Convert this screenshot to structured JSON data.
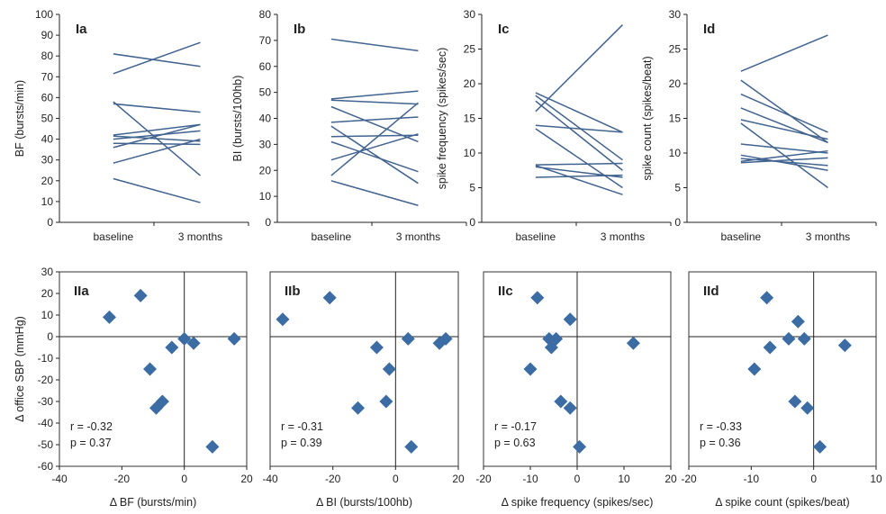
{
  "colors": {
    "series": "#41638f",
    "marker": "#3b6ca3",
    "axis": "#222222",
    "panel_border": "#333333"
  },
  "chart_data": [
    {
      "type": "line",
      "panel_label": "Ia",
      "xlabel": "",
      "ylabel": "BF (bursts/min)",
      "categories": [
        "baseline",
        "3 months"
      ],
      "ylim": [
        0,
        100
      ],
      "yticks": [
        0,
        10,
        20,
        30,
        40,
        50,
        60,
        70,
        80,
        90,
        100
      ],
      "pairs": [
        [
          81,
          75
        ],
        [
          71.5,
          86.5
        ],
        [
          58,
          22.5
        ],
        [
          57,
          53
        ],
        [
          42,
          47
        ],
        [
          40,
          44
        ],
        [
          41.5,
          39
        ],
        [
          38,
          37.5
        ],
        [
          36,
          47
        ],
        [
          28.5,
          40
        ],
        [
          21,
          9.5
        ]
      ]
    },
    {
      "type": "line",
      "panel_label": "Ib",
      "xlabel": "",
      "ylabel": "BI (bursts/100hb)",
      "categories": [
        "baseline",
        "3 months"
      ],
      "ylim": [
        0,
        80
      ],
      "yticks": [
        0,
        10,
        20,
        30,
        40,
        50,
        60,
        70,
        80
      ],
      "pairs": [
        [
          70.5,
          66
        ],
        [
          47.5,
          50.5
        ],
        [
          47,
          45.5
        ],
        [
          44.5,
          31
        ],
        [
          38.5,
          40.5
        ],
        [
          37,
          15
        ],
        [
          33,
          33.5
        ],
        [
          31,
          19.5
        ],
        [
          24,
          34
        ],
        [
          18,
          46
        ],
        [
          16,
          6.5
        ]
      ]
    },
    {
      "type": "line",
      "panel_label": "Ic",
      "xlabel": "",
      "ylabel": "spike frequency (spikes/sec)",
      "categories": [
        "baseline",
        "3 months"
      ],
      "ylim": [
        0,
        30
      ],
      "yticks": [
        0,
        5,
        10,
        15,
        20,
        25,
        30
      ],
      "pairs": [
        [
          18.7,
          13
        ],
        [
          18.3,
          9
        ],
        [
          17.5,
          7.5
        ],
        [
          16,
          28.5
        ],
        [
          14,
          13
        ],
        [
          13.5,
          5
        ],
        [
          8.3,
          8.5
        ],
        [
          8.2,
          4
        ],
        [
          8,
          6.5
        ],
        [
          6.5,
          6.8
        ]
      ]
    },
    {
      "type": "line",
      "panel_label": "Id",
      "xlabel": "",
      "ylabel": "spike count (spikes/beat)",
      "categories": [
        "baseline",
        "3 months"
      ],
      "ylim": [
        0,
        30
      ],
      "yticks": [
        0,
        5,
        10,
        15,
        20,
        25,
        30
      ],
      "pairs": [
        [
          21.8,
          27
        ],
        [
          20.5,
          11.5
        ],
        [
          18.5,
          13
        ],
        [
          16.5,
          11.5
        ],
        [
          14.8,
          12
        ],
        [
          14.3,
          5
        ],
        [
          11.3,
          10
        ],
        [
          9.7,
          7.5
        ],
        [
          9.2,
          8.2
        ],
        [
          8.8,
          10.3
        ],
        [
          8.6,
          9.3
        ]
      ]
    },
    {
      "type": "scatter",
      "panel_label": "IIa",
      "xlabel": "Δ BF (bursts/min)",
      "ylabel": "Δ office SBP (mmHg)",
      "xlim": [
        -40,
        20
      ],
      "xticks": [
        -40,
        -20,
        0,
        20
      ],
      "ylim": [
        -60,
        30
      ],
      "yticks": [
        -60,
        -50,
        -40,
        -30,
        -20,
        -10,
        0,
        10,
        20,
        30
      ],
      "points": [
        [
          -24,
          9
        ],
        [
          -14,
          19
        ],
        [
          -11,
          -15
        ],
        [
          -9,
          -33
        ],
        [
          -7,
          -30
        ],
        [
          -4,
          -5
        ],
        [
          0,
          -1
        ],
        [
          3,
          -3
        ],
        [
          9,
          -51
        ],
        [
          16,
          -1
        ]
      ],
      "r": "r = -0.32",
      "p": "p = 0.37"
    },
    {
      "type": "scatter",
      "panel_label": "IIb",
      "xlabel": "Δ BI (bursts/100hb)",
      "ylabel": "",
      "xlim": [
        -40,
        20
      ],
      "xticks": [
        -40,
        -20,
        0,
        20
      ],
      "ylim": [
        -60,
        30
      ],
      "yticks": [],
      "points": [
        [
          -36,
          8
        ],
        [
          -21,
          18
        ],
        [
          -12,
          -33
        ],
        [
          -6,
          -5
        ],
        [
          -3,
          -30
        ],
        [
          -2,
          -15
        ],
        [
          4,
          -1
        ],
        [
          5,
          -51
        ],
        [
          14,
          -3
        ],
        [
          16,
          -1
        ]
      ],
      "r": "r = -0.31",
      "p": "p = 0.39"
    },
    {
      "type": "scatter",
      "panel_label": "IIc",
      "xlabel": "Δ spike frequency (spikes/sec)",
      "ylabel": "",
      "xlim": [
        -20,
        20
      ],
      "xticks": [
        -20,
        -10,
        0,
        10,
        20
      ],
      "ylim": [
        -60,
        30
      ],
      "yticks": [],
      "points": [
        [
          -10,
          -15
        ],
        [
          -8.5,
          18
        ],
        [
          -6,
          -1
        ],
        [
          -5.5,
          -5
        ],
        [
          -4.5,
          -1
        ],
        [
          -3.5,
          -30
        ],
        [
          -1.5,
          -33
        ],
        [
          -1.5,
          8
        ],
        [
          0.5,
          -51
        ],
        [
          12,
          -3
        ]
      ],
      "r": "r = -0.17",
      "p": "p = 0.63"
    },
    {
      "type": "scatter",
      "panel_label": "IId",
      "xlabel": "Δ spike count (spikes/beat)",
      "ylabel": "",
      "xlim": [
        -20,
        10
      ],
      "xticks": [
        -20,
        -10,
        0,
        10
      ],
      "ylim": [
        -60,
        30
      ],
      "yticks": [],
      "points": [
        [
          -9.5,
          -15
        ],
        [
          -7.5,
          18
        ],
        [
          -7,
          -5
        ],
        [
          -4,
          -1
        ],
        [
          -3,
          -30
        ],
        [
          -2.5,
          7
        ],
        [
          -1.5,
          -1
        ],
        [
          -1,
          -33
        ],
        [
          1,
          -51
        ],
        [
          5,
          -4
        ]
      ],
      "r": "r = -0.33",
      "p": "p = 0.36"
    }
  ]
}
